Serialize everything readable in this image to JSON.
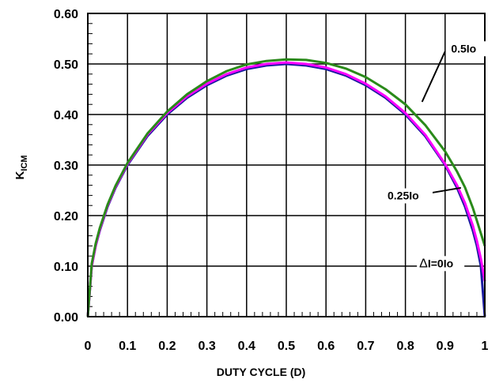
{
  "chart_data": {
    "type": "line",
    "xlabel": "DUTY CYCLE (D)",
    "ylabel_main": "K",
    "ylabel_sub": "ICM",
    "xlim": [
      0,
      1
    ],
    "ylim": [
      0,
      0.6
    ],
    "grid": true,
    "x_ticks": [
      0,
      0.1,
      0.2,
      0.3,
      0.4,
      0.5,
      0.6,
      0.7,
      0.8,
      0.9,
      1
    ],
    "x_tick_labels": [
      "0",
      "0.1",
      "0.2",
      "0.3",
      "0.4",
      "0.5",
      "0.6",
      "0.7",
      "0.8",
      "0.9",
      "1"
    ],
    "y_ticks": [
      0,
      0.1,
      0.2,
      0.3,
      0.4,
      0.5,
      0.6
    ],
    "y_tick_labels": [
      "0.00",
      "0.10",
      "0.20",
      "0.30",
      "0.40",
      "0.50",
      "0.60"
    ],
    "x": [
      0,
      0.01,
      0.02,
      0.03,
      0.05,
      0.07,
      0.1,
      0.15,
      0.2,
      0.25,
      0.3,
      0.35,
      0.4,
      0.45,
      0.5,
      0.55,
      0.6,
      0.65,
      0.7,
      0.75,
      0.8,
      0.85,
      0.9,
      0.93,
      0.95,
      0.97,
      0.98,
      0.99,
      1.0
    ],
    "series": [
      {
        "color": "#1a1aa0",
        "values": [
          0,
          0.1,
          0.14,
          0.17,
          0.218,
          0.255,
          0.3,
          0.357,
          0.4,
          0.433,
          0.458,
          0.477,
          0.49,
          0.497,
          0.5,
          0.497,
          0.49,
          0.477,
          0.458,
          0.433,
          0.4,
          0.357,
          0.3,
          0.255,
          0.218,
          0.17,
          0.14,
          0.1,
          0.0
        ]
      },
      {
        "color": "#ff00ff",
        "values": [
          0,
          0.1,
          0.141,
          0.172,
          0.22,
          0.257,
          0.302,
          0.36,
          0.403,
          0.436,
          0.461,
          0.48,
          0.493,
          0.5,
          0.503,
          0.5,
          0.493,
          0.48,
          0.461,
          0.436,
          0.403,
          0.36,
          0.302,
          0.26,
          0.225,
          0.18,
          0.15,
          0.115,
          0.07
        ]
      },
      {
        "color": "#2a8a1a",
        "values": [
          0,
          0.105,
          0.145,
          0.175,
          0.222,
          0.259,
          0.304,
          0.362,
          0.406,
          0.44,
          0.466,
          0.486,
          0.499,
          0.506,
          0.509,
          0.508,
          0.502,
          0.491,
          0.474,
          0.45,
          0.42,
          0.379,
          0.327,
          0.287,
          0.256,
          0.215,
          0.19,
          0.165,
          0.14
        ]
      }
    ],
    "annotations": [
      {
        "text": "0.5Io",
        "leader_from": [
          0.9,
          0.525
        ],
        "leader_to": [
          0.842,
          0.425
        ],
        "text_at": [
          0.915,
          0.523
        ]
      },
      {
        "text": "0.25Io",
        "leader_from": [
          0.865,
          0.245
        ],
        "leader_to": [
          0.94,
          0.255
        ],
        "text_at": [
          0.755,
          0.232
        ]
      },
      {
        "text": "I=0Io",
        "prefix_symbol": "Δ",
        "text_at": [
          0.835,
          0.098
        ]
      }
    ]
  }
}
